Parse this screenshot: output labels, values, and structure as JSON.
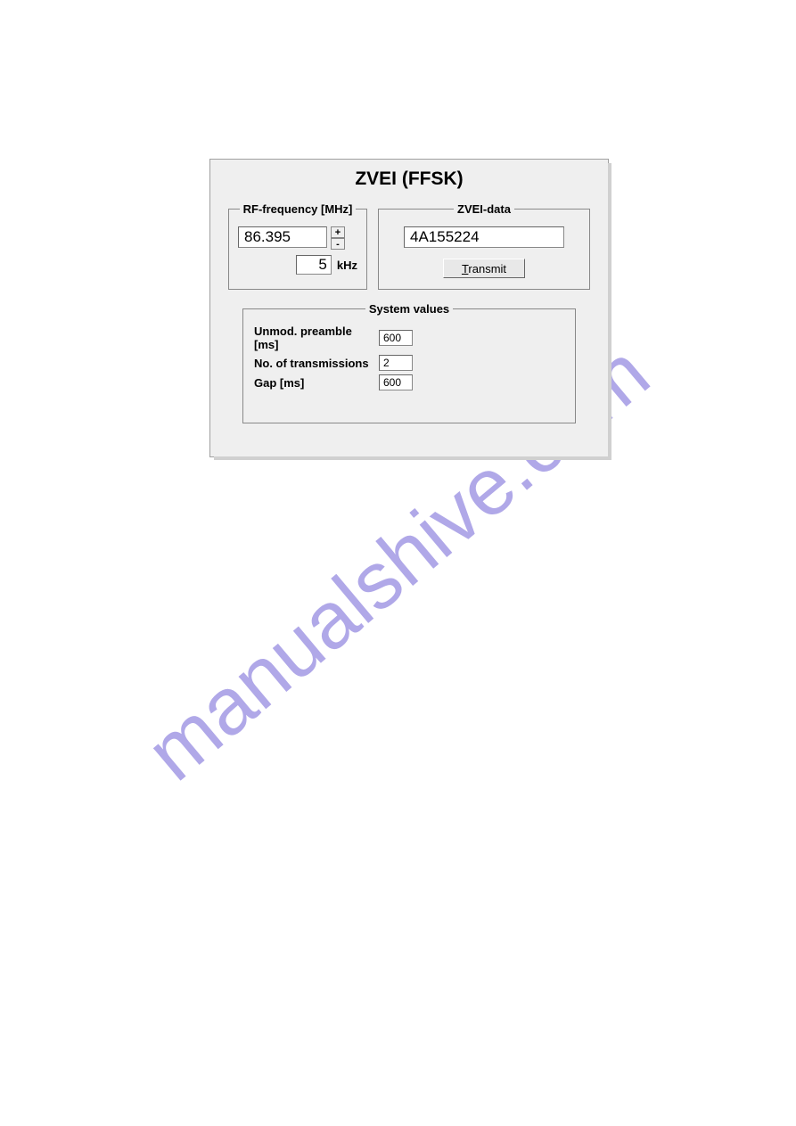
{
  "panel": {
    "title": "ZVEI (FFSK)",
    "background_color": "#efefef",
    "border_color": "#a0a0a0",
    "shadow_color": "#d0d0d0"
  },
  "rf": {
    "legend": "RF-frequency [MHz]",
    "value": "86.395",
    "step_value": "5",
    "step_unit": "kHz",
    "inc_label": "+",
    "dec_label": "-"
  },
  "zvei": {
    "legend": "ZVEI-data",
    "value": "4A155224",
    "transmit_prefix": "T",
    "transmit_rest": "ransmit"
  },
  "system": {
    "legend": "System values",
    "preamble_label": "Unmod. preamble [ms]",
    "preamble_value": "600",
    "transmissions_label": "No. of transmissions",
    "transmissions_value": "2",
    "gap_label": "Gap [ms]",
    "gap_value": "600"
  },
  "watermark": {
    "text": "manualshive.com",
    "color": "#b0a8e8",
    "fontsize": 90,
    "rotation_deg": -40
  },
  "colors": {
    "page_bg": "#ffffff",
    "input_bg": "#ffffff",
    "field_border": "#888888"
  }
}
